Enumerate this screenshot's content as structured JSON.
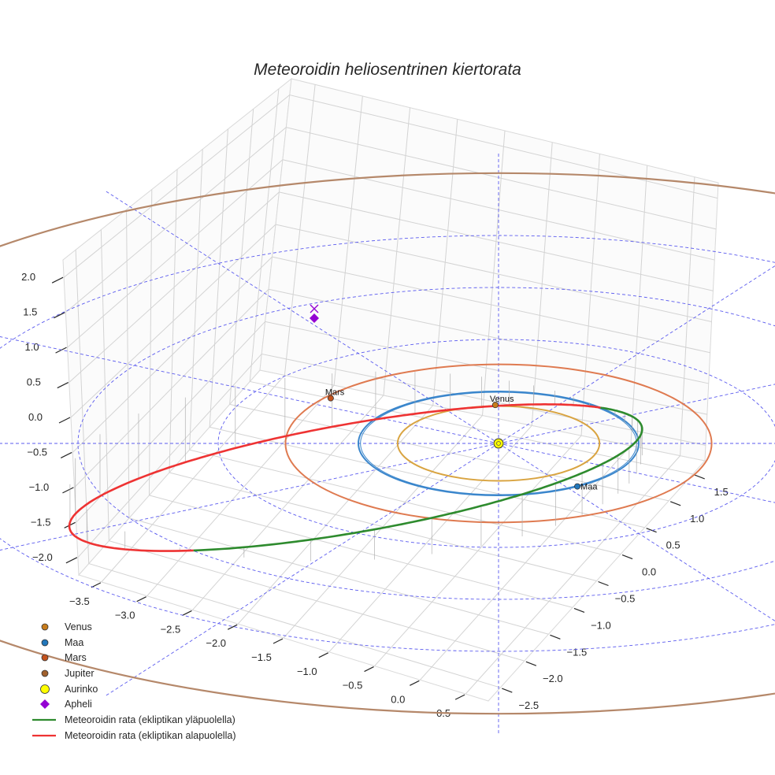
{
  "chart_data": {
    "type": "3d-orbit",
    "title": "Meteoroidin heliosentrinen kiertorata",
    "axes": {
      "x_ticks": [
        -3.5,
        -3.0,
        -2.5,
        -2.0,
        -1.5,
        -1.0,
        -0.5,
        0.0,
        0.5
      ],
      "x_tick_labels": [
        "−3.5",
        "−3.0",
        "−2.5",
        "−2.0",
        "−1.5",
        "−1.0",
        "−0.5",
        "0.0",
        "0.5"
      ],
      "y_ticks": [
        -2.5,
        -2.0,
        -1.5,
        -1.0,
        -0.5,
        0.0,
        0.5,
        1.0,
        1.5
      ],
      "y_tick_labels": [
        "−2.5",
        "−2.0",
        "−1.5",
        "−1.0",
        "−0.5",
        "0.0",
        "0.5",
        "1.0",
        "1.5"
      ],
      "z_ticks": [
        -2.0,
        -1.5,
        -1.0,
        -0.5,
        0.0,
        0.5,
        1.0,
        1.5,
        2.0
      ],
      "z_tick_labels": [
        "−2.0",
        "−1.5",
        "−1.0",
        "−0.5",
        "0.0",
        "0.5",
        "1.0",
        "1.5",
        "2.0"
      ],
      "grid": true
    },
    "planets": [
      {
        "name": "Venus",
        "label": "Venus",
        "orbit_radius_au": 0.72,
        "marker_color": "#c77c1c",
        "orbit_color": "#d9a441"
      },
      {
        "name": "Maa",
        "label": "Maa",
        "orbit_radius_au": 1.0,
        "marker_color": "#2277bb",
        "orbit_color": "#3a86cc"
      },
      {
        "name": "Mars",
        "label": "Mars",
        "orbit_radius_au": 1.52,
        "marker_color": "#c4521c",
        "orbit_color": "#df7a50"
      },
      {
        "name": "Jupiter",
        "label": "",
        "orbit_radius_au": 5.2,
        "marker_color": "#a0602c",
        "orbit_color": "#b5886a"
      }
    ],
    "sun": {
      "name": "Aurinko",
      "color": "#ffff00"
    },
    "aphelion": {
      "name": "Apheli",
      "color": "#9400d3"
    },
    "meteoroid_orbit": {
      "above_ecliptic": {
        "label": "Meteoroidin rata (ekliptikan yläpuolella)",
        "color": "#2e8b2e"
      },
      "below_ecliptic": {
        "label": "Meteoroidin rata (ekliptikan alapuolella)",
        "color": "#ee3333"
      },
      "perihelion_au": 0.98,
      "aphelion_au": 3.2
    },
    "reference_circles_au": [
      1,
      2,
      3,
      4
    ],
    "legend_position": "lower-left"
  },
  "legend": [
    {
      "label": "Venus",
      "kind": "dot",
      "color": "#c77c1c"
    },
    {
      "label": "Maa",
      "kind": "dot",
      "color": "#2277bb"
    },
    {
      "label": "Mars",
      "kind": "dot",
      "color": "#c4521c"
    },
    {
      "label": "Jupiter",
      "kind": "dot",
      "color": "#a0602c"
    },
    {
      "label": "Aurinko",
      "kind": "bigdot",
      "color": "#ffff00"
    },
    {
      "label": "Apheli",
      "kind": "diamond",
      "color": "#9400d3"
    },
    {
      "label": "Meteoroidin rata (ekliptikan yläpuolella)",
      "kind": "line",
      "color": "#2e8b2e"
    },
    {
      "label": "Meteoroidin rata (ekliptikan alapuolella)",
      "kind": "line",
      "color": "#ee3333"
    }
  ]
}
